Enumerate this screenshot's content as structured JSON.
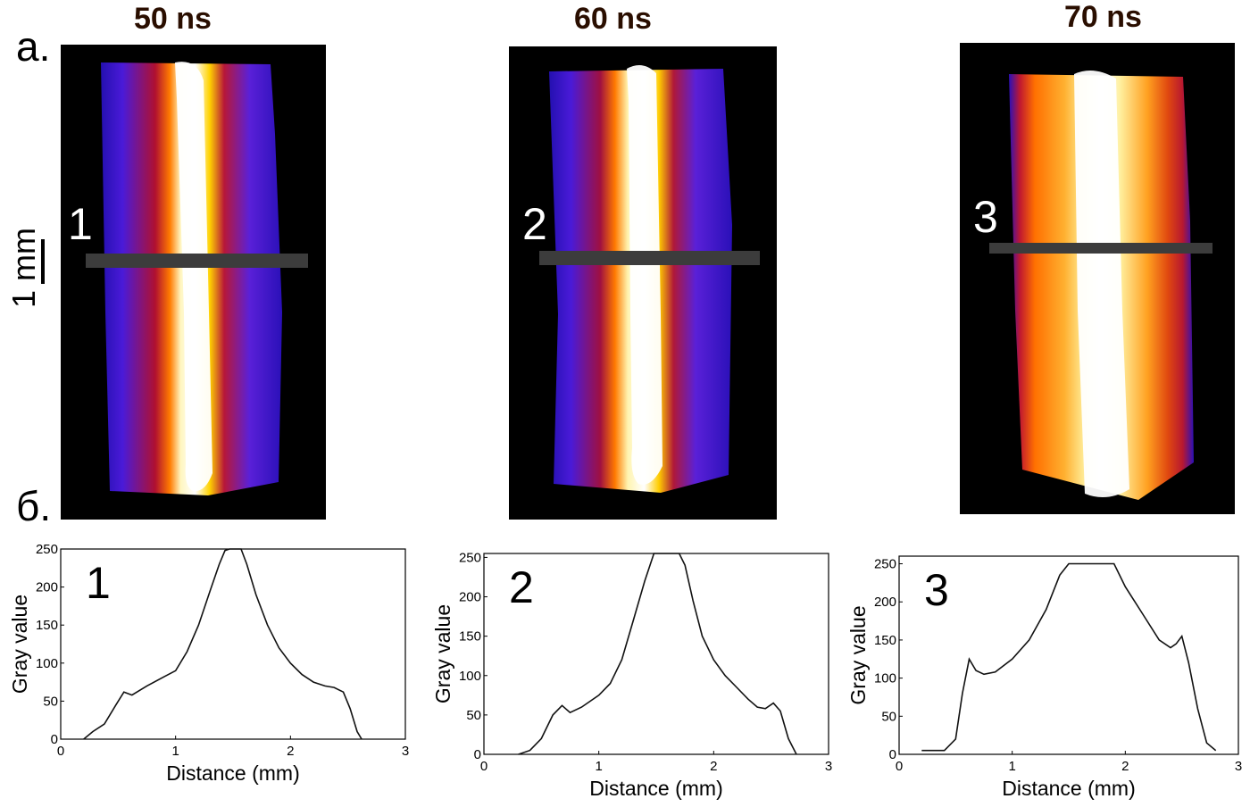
{
  "figure": {
    "panel_a_label": "а.",
    "panel_b_label": "б.",
    "scale_label": "1 mm"
  },
  "images": [
    {
      "time": "50 ns",
      "line_number": "1",
      "palette": "blue"
    },
    {
      "time": "60 ns",
      "line_number": "2",
      "palette": "blue"
    },
    {
      "time": "70 ns",
      "line_number": "3",
      "palette": "orange"
    }
  ],
  "colors": {
    "image_background": "#000000",
    "profile_line": "#3c3c3c",
    "plot_line": "#111111"
  },
  "chart_data": [
    {
      "type": "line",
      "panel_number": "1",
      "xlabel": "Distance (mm)",
      "ylabel": "Gray value",
      "xlim": [
        0,
        3
      ],
      "ylim": [
        0,
        250
      ],
      "x_ticks": [
        0,
        1,
        2,
        3
      ],
      "y_ticks": [
        0,
        50,
        100,
        150,
        200,
        250
      ],
      "grid": false,
      "series": [
        {
          "x": [
            0.2,
            0.28,
            0.38,
            0.48,
            0.55,
            0.62,
            0.75,
            0.9,
            1.0,
            1.1,
            1.2,
            1.3,
            1.38,
            1.43,
            1.47,
            1.52,
            1.57,
            1.62,
            1.7,
            1.8,
            1.9,
            2.0,
            2.1,
            2.2,
            2.3,
            2.38,
            2.46,
            2.52,
            2.58,
            2.62
          ],
          "y": [
            0,
            10,
            20,
            45,
            62,
            58,
            70,
            82,
            90,
            115,
            150,
            195,
            230,
            248,
            250,
            250,
            250,
            230,
            190,
            150,
            120,
            100,
            85,
            75,
            70,
            68,
            62,
            40,
            10,
            0
          ]
        }
      ]
    },
    {
      "type": "line",
      "panel_number": "2",
      "xlabel": "Distance (mm)",
      "ylabel": "Gray value",
      "xlim": [
        0,
        3
      ],
      "ylim": [
        0,
        255
      ],
      "x_ticks": [
        0,
        1,
        2,
        3
      ],
      "y_ticks": [
        0,
        50,
        100,
        150,
        200,
        250
      ],
      "grid": false,
      "series": [
        {
          "x": [
            0.3,
            0.4,
            0.5,
            0.6,
            0.68,
            0.75,
            0.85,
            1.0,
            1.1,
            1.2,
            1.3,
            1.4,
            1.48,
            1.55,
            1.6,
            1.7,
            1.75,
            1.82,
            1.9,
            2.0,
            2.1,
            2.2,
            2.3,
            2.38,
            2.45,
            2.52,
            2.58,
            2.65,
            2.72
          ],
          "y": [
            0,
            5,
            20,
            50,
            62,
            53,
            60,
            75,
            90,
            120,
            170,
            220,
            255,
            255,
            255,
            255,
            240,
            195,
            150,
            120,
            100,
            85,
            70,
            60,
            58,
            65,
            55,
            20,
            0
          ]
        }
      ]
    },
    {
      "type": "line",
      "panel_number": "3",
      "xlabel": "Distance (mm)",
      "ylabel": "Gray value",
      "xlim": [
        0,
        3
      ],
      "ylim": [
        0,
        260
      ],
      "x_ticks": [
        0,
        1,
        2,
        3
      ],
      "y_ticks": [
        0,
        50,
        100,
        150,
        200,
        250
      ],
      "grid": false,
      "series": [
        {
          "x": [
            0.2,
            0.4,
            0.5,
            0.56,
            0.62,
            0.68,
            0.75,
            0.85,
            1.0,
            1.15,
            1.3,
            1.42,
            1.5,
            1.6,
            1.8,
            1.9,
            2.0,
            2.15,
            2.3,
            2.4,
            2.45,
            2.5,
            2.56,
            2.64,
            2.72,
            2.8
          ],
          "y": [
            5,
            5,
            20,
            80,
            125,
            110,
            105,
            108,
            125,
            150,
            190,
            235,
            250,
            250,
            250,
            250,
            220,
            185,
            150,
            140,
            145,
            155,
            120,
            60,
            15,
            5
          ]
        }
      ]
    }
  ]
}
